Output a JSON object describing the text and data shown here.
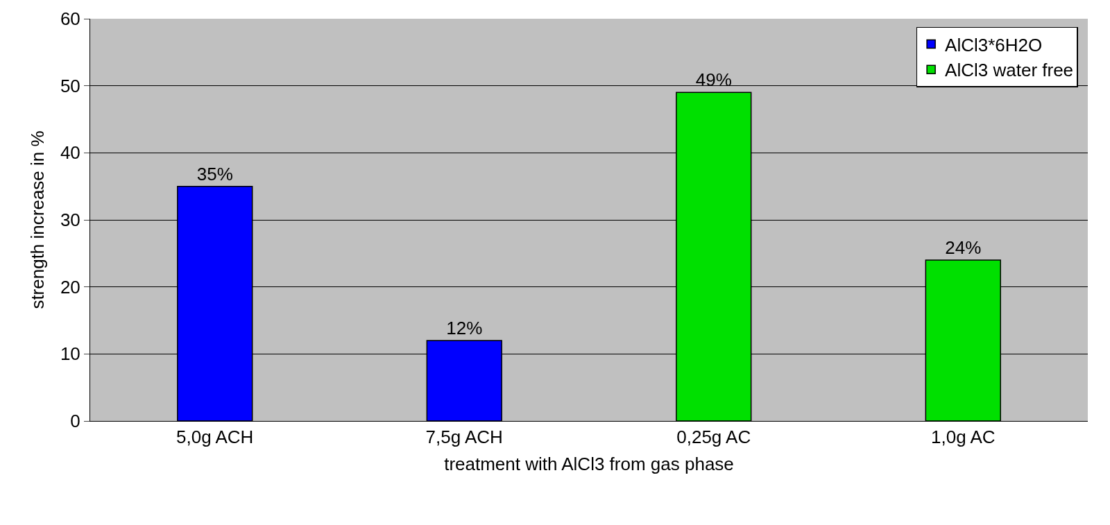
{
  "chart_data": {
    "type": "bar",
    "xlabel": "treatment with AlCl3 from gas phase",
    "ylabel": "strength increase in %",
    "categories": [
      "5,0g ACH",
      "7,5g ACH",
      "0,25g AC",
      "1,0g AC"
    ],
    "series": [
      {
        "name": "AlCl3*6H2O",
        "color": "#0000ff",
        "values": [
          35,
          12,
          null,
          null
        ],
        "value_labels": [
          "35%",
          "12%",
          null,
          null
        ]
      },
      {
        "name": "AlCl3 water free",
        "color": "#00e000",
        "values": [
          null,
          null,
          49,
          24
        ],
        "value_labels": [
          null,
          null,
          "49%",
          "24%"
        ]
      }
    ],
    "ylim": [
      0,
      60
    ],
    "yticks": [
      0,
      10,
      20,
      30,
      40,
      50,
      60
    ],
    "grid": "y",
    "legend": "top right"
  }
}
